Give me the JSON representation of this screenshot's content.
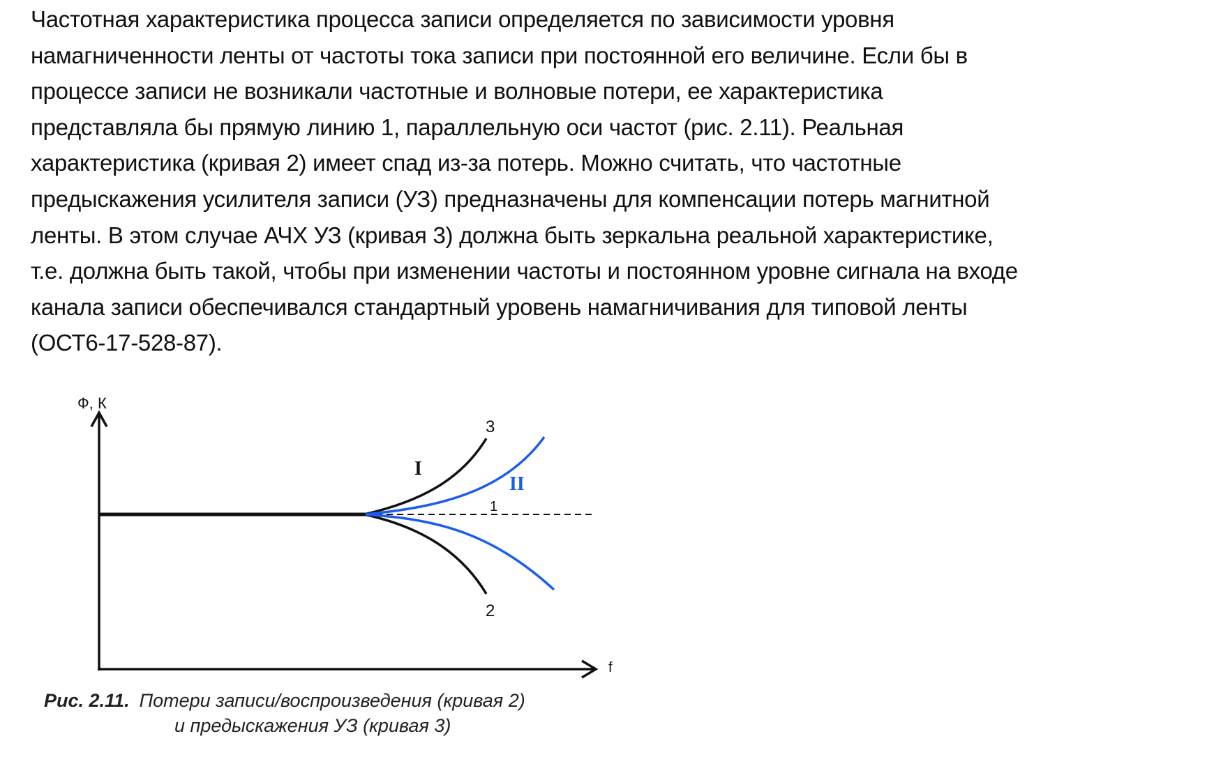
{
  "paragraph": {
    "lines": [
      "Частотная характеристика процесса записи определяется по зависимости уровня",
      "намагниченности ленты от частоты тока записи при постоянной его величине. Если бы в",
      "процессе записи не возникали частотные и волновые потери, ее характеристика",
      "представляла бы прямую линию 1, параллельную оси частот (рис. 2.11). Реальная",
      "характеристика (кривая 2) имеет спад из-за потерь. Можно считать, что частотные",
      "предыскажения усилителя записи (УЗ) предназначены для компенсации потерь магнитной",
      "ленты. В этом случае АЧХ УЗ (кривая 3) должна быть зеркальна реальной характеристике,",
      "т.е. должна быть такой, чтобы при изменении частоты и постоянном уровне сигнала на входе",
      "канала записи обеспечивался стандартный уровень намагничивания для типовой ленты",
      "(ОСТ6-17-528-87)."
    ]
  },
  "figure": {
    "y_axis_label": "Ф, К",
    "x_axis_label": "f",
    "curve_labels": {
      "line1": "1",
      "curve2": "2",
      "curve3": "3"
    },
    "region_labels": {
      "upper": "I",
      "lower": "II"
    },
    "colors": {
      "ink": "#111111",
      "blue": "#1a5cf0"
    },
    "caption": {
      "number": "Рис. 2.11.",
      "line1": "Потери записи/воспроизведения (кривая 2)",
      "line2": "и предыскажения УЗ (кривая 3)"
    }
  }
}
